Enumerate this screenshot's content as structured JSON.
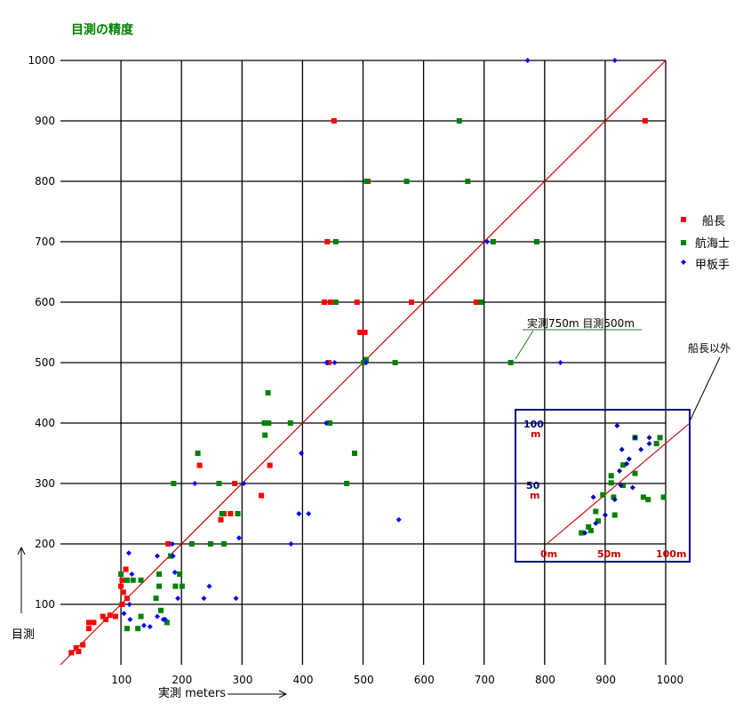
{
  "chart_data": {
    "type": "scatter",
    "title": "目測の精度",
    "xlabel": "実測 meters",
    "ylabel": "目測",
    "xlim": [
      0,
      1000
    ],
    "ylim": [
      0,
      1000
    ],
    "x_ticks": [
      "100",
      "200",
      "300",
      "400",
      "500",
      "600",
      "700",
      "800",
      "900",
      "1000"
    ],
    "y_ticks": [
      "100",
      "200",
      "300",
      "400",
      "500",
      "600",
      "700",
      "800",
      "900",
      "1000"
    ],
    "grid": true,
    "legend_position": "right",
    "diagonal": {
      "from": [
        0,
        0
      ],
      "to": [
        1000,
        1000
      ],
      "color": "#cc0000"
    },
    "series": [
      {
        "name": "船長",
        "marker": "square",
        "color": "#ff0000",
        "points": [
          [
            452,
            900
          ],
          [
            966,
            900
          ],
          [
            508,
            800
          ],
          [
            441,
            700
          ],
          [
            436,
            600
          ],
          [
            446,
            600
          ],
          [
            490,
            600
          ],
          [
            580,
            600
          ],
          [
            687,
            600
          ],
          [
            495,
            550
          ],
          [
            503,
            550
          ],
          [
            443,
            500
          ],
          [
            230,
            330
          ],
          [
            346,
            330
          ],
          [
            288,
            300
          ],
          [
            332,
            280
          ],
          [
            265,
            240
          ],
          [
            270,
            250
          ],
          [
            281,
            250
          ],
          [
            178,
            200
          ],
          [
            102,
            140
          ],
          [
            108,
            158
          ],
          [
            100,
            130
          ],
          [
            104,
            120
          ],
          [
            110,
            110
          ],
          [
            102,
            100
          ],
          [
            70,
            80
          ],
          [
            75,
            75
          ],
          [
            82,
            82
          ],
          [
            91,
            80
          ],
          [
            55,
            70
          ],
          [
            47,
            70
          ],
          [
            47,
            60
          ],
          [
            37,
            33
          ],
          [
            30,
            22
          ],
          [
            18,
            20
          ],
          [
            26,
            28
          ]
        ]
      },
      {
        "name": "航海士",
        "marker": "square",
        "color": "#008000",
        "points": [
          [
            659,
            900
          ],
          [
            506,
            800
          ],
          [
            572,
            800
          ],
          [
            673,
            800
          ],
          [
            455,
            700
          ],
          [
            715,
            700
          ],
          [
            787,
            700
          ],
          [
            455,
            600
          ],
          [
            695,
            600
          ],
          [
            744,
            500
          ],
          [
            501,
            500
          ],
          [
            553,
            500
          ],
          [
            505,
            505
          ],
          [
            445,
            400
          ],
          [
            337,
            400
          ],
          [
            344,
            400
          ],
          [
            343,
            450
          ],
          [
            338,
            380
          ],
          [
            380,
            400
          ],
          [
            486,
            350
          ],
          [
            227,
            350
          ],
          [
            473,
            300
          ],
          [
            262,
            300
          ],
          [
            187,
            300
          ],
          [
            293,
            250
          ],
          [
            267,
            250
          ],
          [
            248,
            200
          ],
          [
            270,
            200
          ],
          [
            217,
            200
          ],
          [
            182,
            180
          ],
          [
            190,
            130
          ],
          [
            163,
            150
          ],
          [
            197,
            150
          ],
          [
            201,
            130
          ],
          [
            163,
            130
          ],
          [
            158,
            110
          ],
          [
            133,
            140
          ],
          [
            100,
            150
          ],
          [
            120,
            140
          ],
          [
            110,
            140
          ],
          [
            166,
            90
          ],
          [
            176,
            70
          ],
          [
            133,
            80
          ],
          [
            110,
            60
          ],
          [
            128,
            60
          ]
        ]
      },
      {
        "name": "甲板手",
        "marker": "diamond",
        "color": "#0000ff",
        "points": [
          [
            772,
            1000
          ],
          [
            916,
            1000
          ],
          [
            705,
            700
          ],
          [
            440,
            500
          ],
          [
            453,
            500
          ],
          [
            505,
            500
          ],
          [
            826,
            500
          ],
          [
            439,
            400
          ],
          [
            398,
            350
          ],
          [
            222,
            300
          ],
          [
            303,
            300
          ],
          [
            394,
            250
          ],
          [
            410,
            250
          ],
          [
            559,
            240
          ],
          [
            295,
            210
          ],
          [
            381,
            200
          ],
          [
            185,
            200
          ],
          [
            113,
            185
          ],
          [
            186,
            180
          ],
          [
            160,
            180
          ],
          [
            189,
            153
          ],
          [
            118,
            150
          ],
          [
            194,
            110
          ],
          [
            237,
            110
          ],
          [
            246,
            130
          ],
          [
            290,
            110
          ],
          [
            114,
            100
          ],
          [
            105,
            85
          ],
          [
            115,
            75
          ],
          [
            160,
            80
          ],
          [
            170,
            75
          ],
          [
            138,
            65
          ],
          [
            148,
            63
          ],
          [
            173,
            75
          ]
        ]
      }
    ],
    "annotations": [
      {
        "text": "実測750m  目測500m",
        "target": [
          750,
          500
        ]
      },
      {
        "text": "船長以外"
      }
    ],
    "inset": {
      "xlim": [
        0,
        100
      ],
      "ylim": [
        0,
        100
      ],
      "x_ticks": [
        "0m",
        "50m",
        "100m"
      ],
      "y_ticks": [
        {
          "value": "100",
          "unit": "m"
        },
        {
          "value": "50",
          "unit": "m"
        }
      ],
      "series": [
        {
          "name": "航海士",
          "marker": "square",
          "color": "#008000",
          "points": [
            [
              30,
              10
            ],
            [
              36,
              15
            ],
            [
              38,
              12
            ],
            [
              44,
              20
            ],
            [
              42,
              28
            ],
            [
              48,
              42
            ],
            [
              55,
              52
            ],
            [
              55,
              58
            ],
            [
              57,
              40
            ],
            [
              58,
              25
            ],
            [
              65,
              50
            ],
            [
              65,
              67
            ],
            [
              75,
              60
            ],
            [
              75,
              90
            ],
            [
              82,
              40
            ],
            [
              86,
              38
            ],
            [
              99,
              40
            ],
            [
              96,
              90
            ],
            [
              93,
              85
            ]
          ]
        },
        {
          "name": "甲板手",
          "marker": "diamond",
          "color": "#0000aa",
          "points": [
            [
              33,
              10
            ],
            [
              42,
              18
            ],
            [
              40,
              40
            ],
            [
              50,
              25
            ],
            [
              58,
              38
            ],
            [
              62,
              62
            ],
            [
              63,
              50
            ],
            [
              64,
              80
            ],
            [
              60,
              100
            ],
            [
              68,
              68
            ],
            [
              70,
              72
            ],
            [
              73,
              48
            ],
            [
              75,
              90
            ],
            [
              80,
              80
            ],
            [
              87,
              85
            ],
            [
              87,
              90
            ]
          ]
        }
      ]
    }
  }
}
